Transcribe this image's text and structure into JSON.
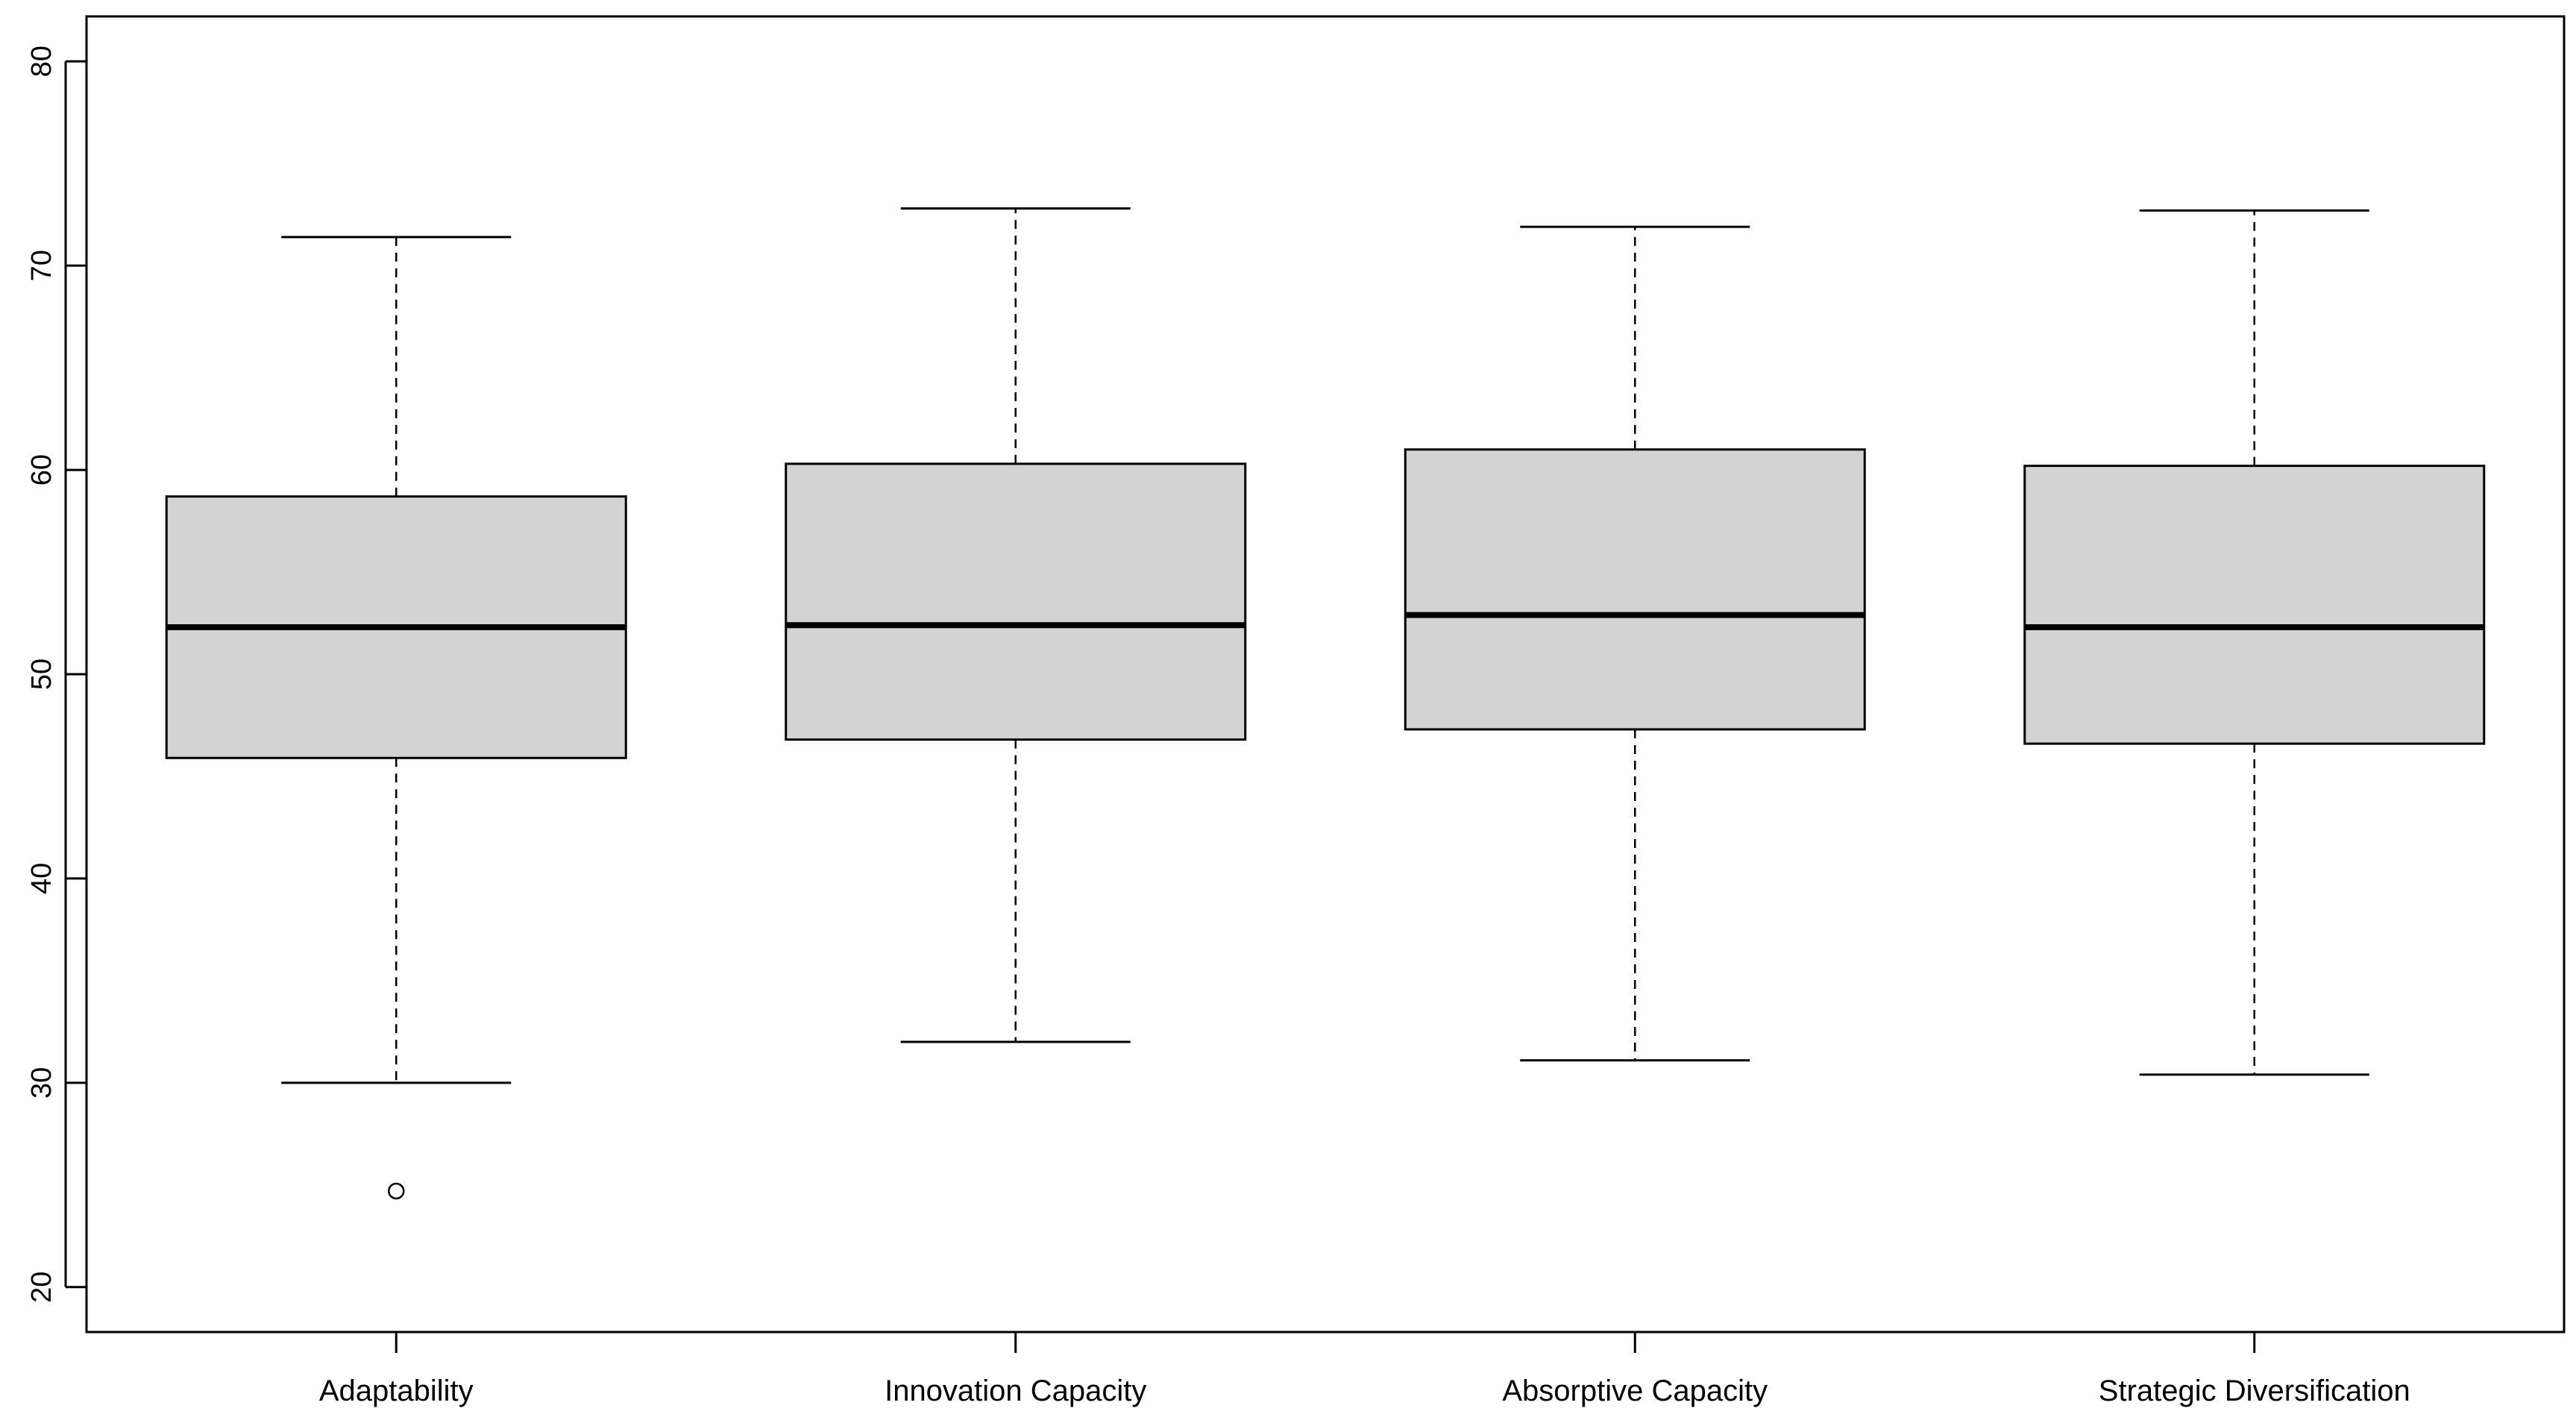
{
  "chart_data": {
    "type": "boxplot",
    "title": "",
    "xlabel": "",
    "ylabel": "",
    "ylim": [
      17.8,
      82.2
    ],
    "yticks": [
      20,
      30,
      40,
      50,
      60,
      70,
      80
    ],
    "ytick_labels": [
      "20",
      "30",
      "40",
      "50",
      "60",
      "70",
      "80"
    ],
    "grid": false,
    "legend": "none",
    "colors": {
      "box_fill": "#d3d3d3",
      "stroke": "#000000"
    },
    "categories": [
      "Adaptability",
      "Innovation Capacity",
      "Absorptive Capacity",
      "Strategic Diversification"
    ],
    "boxes": [
      {
        "category": "Adaptability",
        "whisker_low": 30.0,
        "q1": 45.9,
        "median": 52.3,
        "q3": 58.7,
        "whisker_high": 71.4,
        "outliers": [
          24.7
        ]
      },
      {
        "category": "Innovation Capacity",
        "whisker_low": 32.0,
        "q1": 46.8,
        "median": 52.4,
        "q3": 60.3,
        "whisker_high": 72.8,
        "outliers": []
      },
      {
        "category": "Absorptive Capacity",
        "whisker_low": 31.1,
        "q1": 47.3,
        "median": 52.9,
        "q3": 61.0,
        "whisker_high": 71.9,
        "outliers": []
      },
      {
        "category": "Strategic Diversification",
        "whisker_low": 30.4,
        "q1": 46.6,
        "median": 52.3,
        "q3": 60.2,
        "whisker_high": 72.7,
        "outliers": []
      }
    ]
  }
}
